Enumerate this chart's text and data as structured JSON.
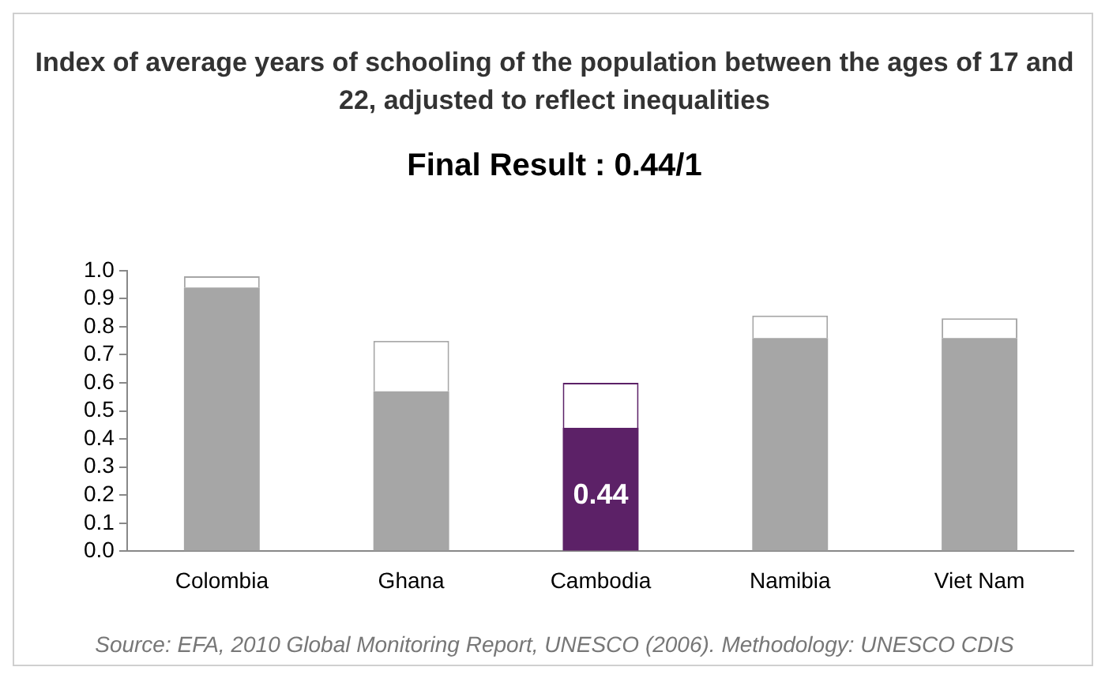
{
  "chart_data": {
    "type": "bar",
    "title": "Index of average years of schooling of the population between the ages of 17 and 22, adjusted to reflect inequalities",
    "subtitle": "Final Result : 0.44/1",
    "categories": [
      "Colombia",
      "Ghana",
      "Cambodia",
      "Namibia",
      "Viet Nam"
    ],
    "stacked": true,
    "series": [
      {
        "colors": [
          "#a6a6a6",
          "#a6a6a6",
          "#5c2167",
          "#a6a6a6",
          "#a6a6a6"
        ],
        "values": [
          0.94,
          0.57,
          0.44,
          0.76,
          0.76
        ],
        "value_labels": [
          null,
          null,
          "0.44",
          null,
          null
        ]
      },
      {
        "color": "#ffffff",
        "values": [
          0.04,
          0.18,
          0.16,
          0.08,
          0.07
        ]
      }
    ],
    "ylim": [
      0,
      1
    ],
    "yticks": [
      {
        "value": 0,
        "label": "0.0"
      },
      {
        "value": 0.1,
        "label": "0.1"
      },
      {
        "value": 0.2,
        "label": "0.2"
      },
      {
        "value": 0.3,
        "label": "0.3"
      },
      {
        "value": 0.4,
        "label": "0.4"
      },
      {
        "value": 0.5,
        "label": "0.5"
      },
      {
        "value": 0.6,
        "label": "0.6"
      },
      {
        "value": 0.7,
        "label": "0.7"
      },
      {
        "value": 0.8,
        "label": "0.8"
      },
      {
        "value": 0.9,
        "label": "0.9"
      },
      {
        "value": 1,
        "label": "1.0"
      }
    ],
    "grid": false,
    "legend": false,
    "annotations": [
      "Source: EFA, 2010 Global Monitoring Report, UNESCO (2006). Methodology: UNESCO CDIS"
    ]
  }
}
